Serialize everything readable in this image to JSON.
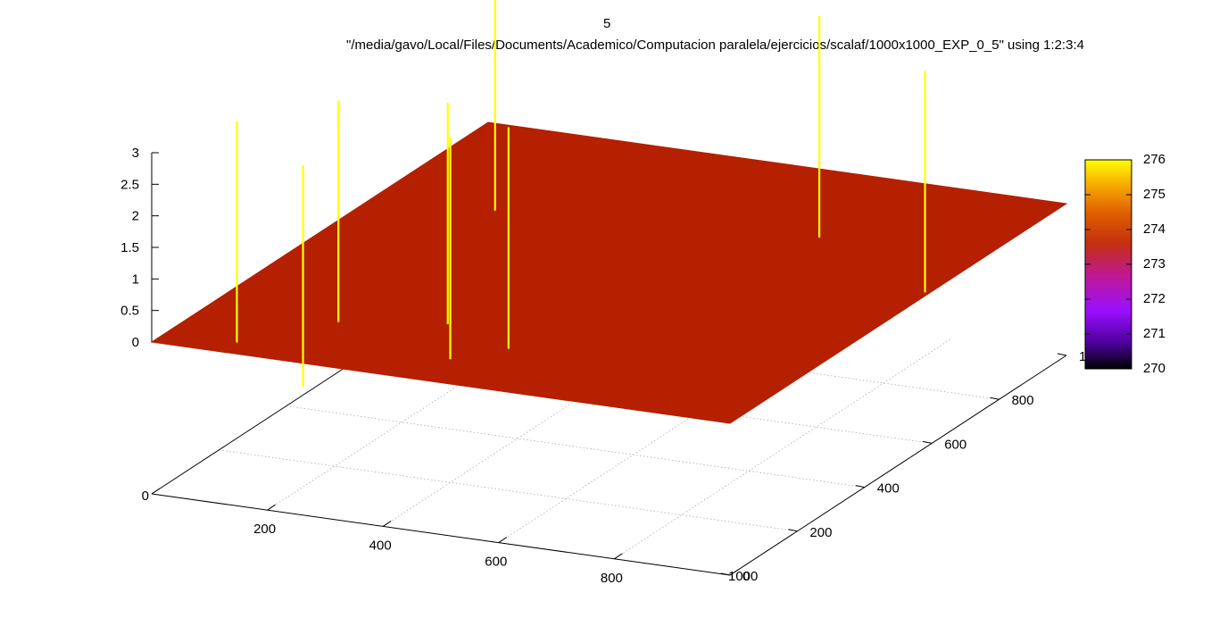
{
  "title": "5",
  "subtitle": "\"/media/gavo/Local/Files/Documents/Academico/Computacion paralela/ejercicios/scalaf/1000x1000_EXP_0_5\" using 1:2:3:4",
  "chart_data": {
    "type": "surface3d",
    "title": "5",
    "plot_label": "\"/media/gavo/Local/Files/Documents/Academico/Computacion paralela/ejercicios/scalaf/1000x1000_EXP_0_5\" using 1:2:3:4",
    "x_axis": {
      "ticks": [
        "0",
        "200",
        "400",
        "600",
        "800",
        "1000"
      ],
      "range": [
        0,
        1000
      ]
    },
    "y_axis": {
      "ticks": [
        "0",
        "200",
        "400",
        "600",
        "800",
        "1000"
      ],
      "range": [
        0,
        1000
      ]
    },
    "z_axis": {
      "ticks": [
        "0",
        "0.5",
        "1",
        "1.5",
        "2",
        "2.5",
        "3"
      ],
      "range": [
        0,
        3
      ]
    },
    "colorbar": {
      "ticks": [
        "270",
        "271",
        "272",
        "273",
        "274",
        "275",
        "276"
      ],
      "range": [
        270,
        276
      ]
    },
    "surface": {
      "z": 0,
      "color_value": 273.6,
      "color": "#b42000"
    },
    "spikes": [
      {
        "x": 60,
        "y": 150,
        "z": 3,
        "color": "#ffff00"
      },
      {
        "x": 250,
        "y": 20,
        "z": 3,
        "color": "#ffff00"
      },
      {
        "x": 160,
        "y": 280,
        "z": 3,
        "color": "#ffff00"
      },
      {
        "x": 400,
        "y": 200,
        "z": 3,
        "color": "#ffff00"
      },
      {
        "x": 320,
        "y": 330,
        "z": 3,
        "color": "#ffff00"
      },
      {
        "x": 460,
        "y": 270,
        "z": 3,
        "color": "#ffff00"
      },
      {
        "x": 140,
        "y": 780,
        "z": 3,
        "color": "#ffff00"
      },
      {
        "x": 660,
        "y": 850,
        "z": 3,
        "color": "#ffff00"
      },
      {
        "x": 930,
        "y": 700,
        "z": 3,
        "color": "#ffff00"
      }
    ],
    "grid": true
  }
}
